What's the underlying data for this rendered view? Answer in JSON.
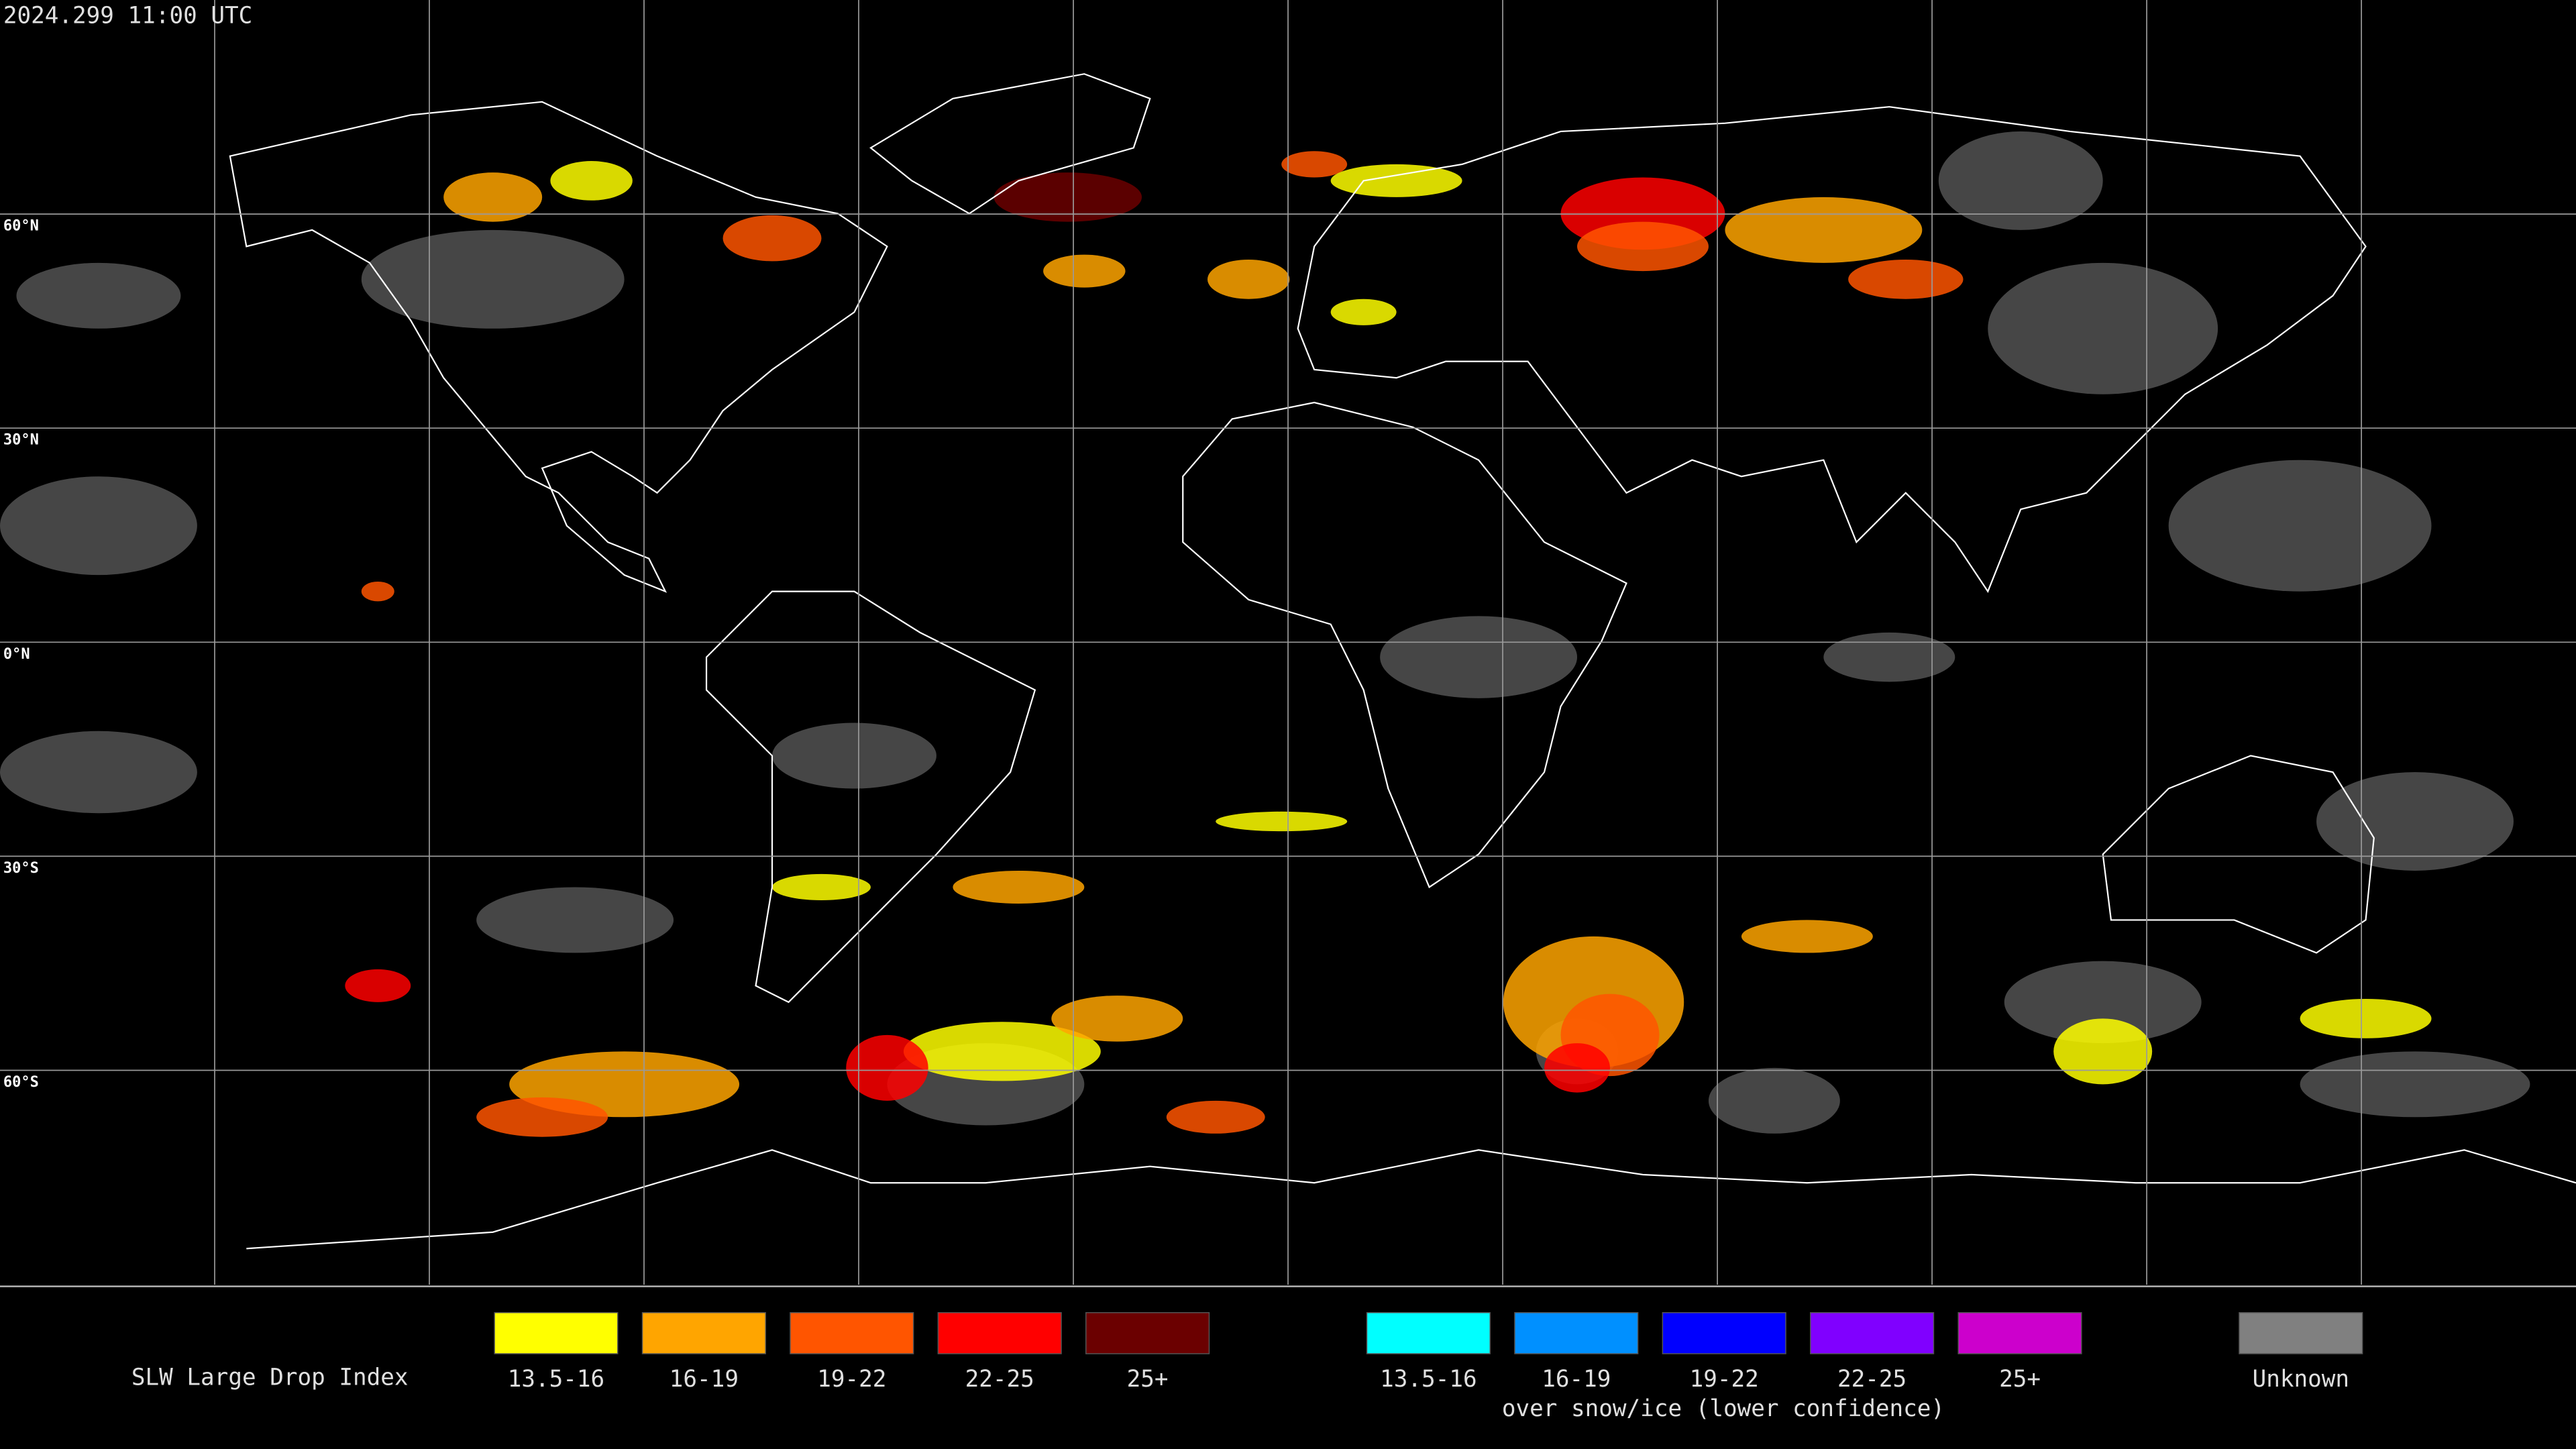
{
  "header": {
    "timestamp": "2024.299 11:00 UTC"
  },
  "map": {
    "latitude_labels": [
      "60°N",
      "30°N",
      "0°N",
      "30°S",
      "60°S"
    ]
  },
  "legend": {
    "title": "SLW Large Drop Index",
    "groups": [
      {
        "items": [
          {
            "label": "13.5-16",
            "color": "#ffff00"
          },
          {
            "label": "16-19",
            "color": "#ffa500"
          },
          {
            "label": "19-22",
            "color": "#ff5500"
          },
          {
            "label": "22-25",
            "color": "#ff0000"
          },
          {
            "label": "25+",
            "color": "#6b0000"
          }
        ]
      },
      {
        "caption": "over snow/ice (lower confidence)",
        "items": [
          {
            "label": "13.5-16",
            "color": "#00ffff"
          },
          {
            "label": "16-19",
            "color": "#0090ff"
          },
          {
            "label": "19-22",
            "color": "#0000ff"
          },
          {
            "label": "22-25",
            "color": "#8000ff"
          },
          {
            "label": "25+",
            "color": "#cc00cc"
          }
        ]
      },
      {
        "items": [
          {
            "label": "Unknown",
            "color": "#808080"
          }
        ]
      }
    ]
  }
}
